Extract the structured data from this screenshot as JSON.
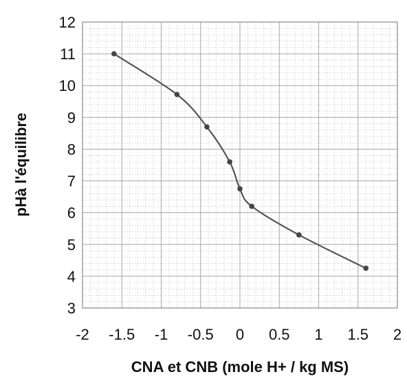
{
  "chart_data": {
    "type": "line",
    "title": "",
    "xlabel": "CNA et CNB (mole H+ / kg MS)",
    "ylabel": "pHà l'équilibre",
    "xlim": [
      -2,
      2
    ],
    "ylim": [
      3,
      12
    ],
    "xticks": [
      "-2",
      "-1.5",
      "-1",
      "-0.5",
      "0",
      "0.5",
      "1",
      "1.5",
      "2"
    ],
    "yticks": [
      "3",
      "4",
      "5",
      "6",
      "7",
      "8",
      "9",
      "10",
      "11",
      "12"
    ],
    "grid": true,
    "minor_grid": true,
    "legend": "none",
    "series": [
      {
        "color": "#555555",
        "points": [
          {
            "x": -1.6,
            "y": 11.0
          },
          {
            "x": -0.8,
            "y": 9.72
          },
          {
            "x": -0.42,
            "y": 8.7
          },
          {
            "x": -0.13,
            "y": 7.6
          },
          {
            "x": 0.0,
            "y": 6.75
          },
          {
            "x": 0.15,
            "y": 6.2
          },
          {
            "x": 0.75,
            "y": 5.3
          },
          {
            "x": 1.6,
            "y": 4.25
          }
        ]
      }
    ]
  }
}
